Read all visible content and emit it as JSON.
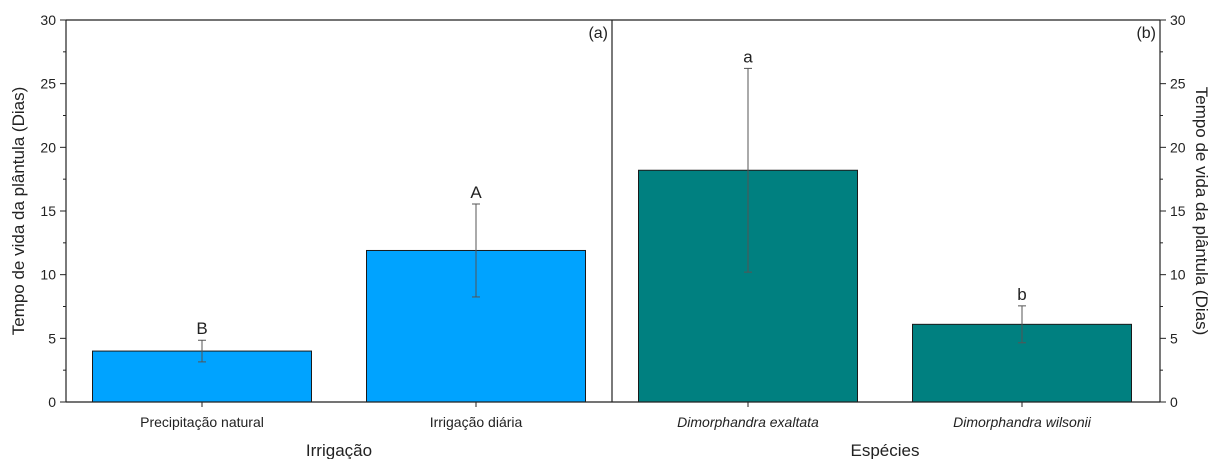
{
  "chart_data": [
    {
      "type": "bar",
      "panel_tag": "(a)",
      "xlabel": "Irrigação",
      "ylabel": "Tempo de vida da plântula (Dias)",
      "ylim": [
        0,
        30
      ],
      "yticks": [
        "0",
        "5",
        "10",
        "15",
        "20",
        "25",
        "30"
      ],
      "categories": [
        "Precipitação natural",
        "Irrigação diária"
      ],
      "italic_categories": false,
      "values": [
        4.0,
        11.9
      ],
      "errors": [
        0.85,
        3.65
      ],
      "significance": [
        "B",
        "A"
      ],
      "color": "#00a3ff"
    },
    {
      "type": "bar",
      "panel_tag": "(b)",
      "xlabel": "Espécies",
      "ylabel": "Tempo de vida da plântula (Dias)",
      "ylim": [
        0,
        30
      ],
      "yticks": [
        "0",
        "5",
        "10",
        "15",
        "20",
        "25",
        "30"
      ],
      "categories": [
        "Dimorphandra exaltata",
        "Dimorphandra wilsonii"
      ],
      "italic_categories": true,
      "values": [
        18.2,
        6.1
      ],
      "errors": [
        8.0,
        1.45
      ],
      "significance": [
        "a",
        "b"
      ],
      "color": "#008080"
    }
  ]
}
